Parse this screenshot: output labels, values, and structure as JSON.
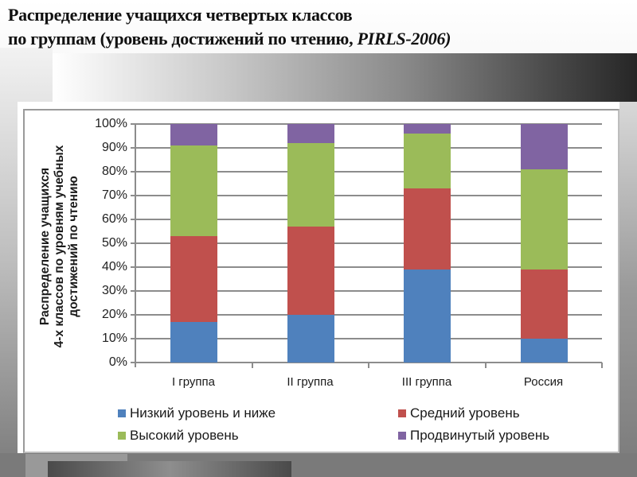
{
  "slide": {
    "title_line1": "Распределение учащихся четвертых классов",
    "title_line2_prefix": "по группам (уровень достижений по чтению, ",
    "title_line2_italic": "PIRLS-2006)"
  },
  "chart_data": {
    "type": "bar",
    "stacked": true,
    "percent_stacked": true,
    "title": "Распределение учащихся четвертых классов по группам (уровень достижений по чтению, PIRLS-2006)",
    "xlabel": "",
    "ylabel": "Распределение учащихся 4-х классов по уровням учебных достижений по чтению",
    "ylabel_lines": [
      "Распределение учащихся",
      "4-х классов по уровням учебных",
      "достижений по чтению"
    ],
    "categories": [
      "I группа",
      "II группа",
      "III группа",
      "Россия"
    ],
    "yticks": [
      "0%",
      "10%",
      "20%",
      "30%",
      "40%",
      "50%",
      "60%",
      "70%",
      "80%",
      "90%",
      "100%"
    ],
    "ylim": [
      0,
      100
    ],
    "grid": true,
    "legend_position": "bottom",
    "series": [
      {
        "name": "Низкий уровень и ниже",
        "color": "#4f81bd",
        "values": [
          17,
          20,
          39,
          10
        ]
      },
      {
        "name": "Средний уровень",
        "color": "#c0504d",
        "values": [
          36,
          37,
          34,
          29
        ]
      },
      {
        "name": "Высокий уровень",
        "color": "#9bbb59",
        "values": [
          38,
          35,
          23,
          42
        ]
      },
      {
        "name": "Продвинутый уровень",
        "color": "#8064a2",
        "values": [
          9,
          8,
          4,
          19
        ]
      }
    ]
  }
}
